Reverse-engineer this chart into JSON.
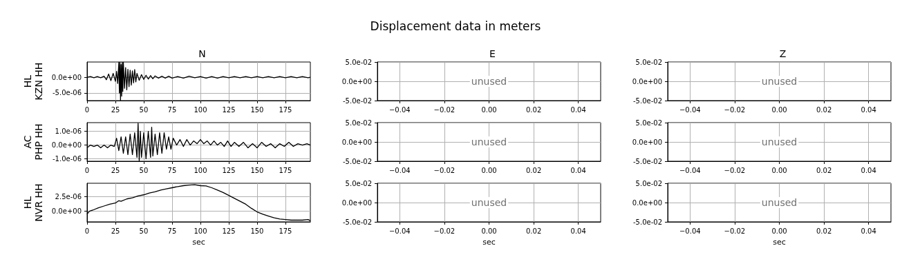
{
  "chart_data": [
    {
      "type": "line",
      "title": "N",
      "ylabel": "HL\nKZN HH",
      "annotations": [
        "Displacement data in meters"
      ],
      "grid": true,
      "xlim": [
        0,
        197
      ],
      "xticks": [
        0,
        25,
        50,
        75,
        100,
        125,
        150,
        175
      ],
      "ylim": [
        -7.4e-06,
        4.8e-06
      ],
      "yticks": [
        {
          "value": -5e-06,
          "label": "-5.0e-06"
        },
        {
          "value": 0,
          "label": "0.0e+00"
        }
      ],
      "series": [
        {
          "color": "#000000",
          "x": [
            0,
            3,
            6,
            9,
            12,
            15,
            17,
            19,
            21,
            23,
            25,
            26,
            27,
            28,
            28.5,
            29,
            29.5,
            30,
            30.5,
            31,
            31.5,
            32,
            33,
            34,
            35,
            36,
            37,
            38,
            39,
            40,
            41,
            42,
            43,
            44,
            46,
            48,
            50,
            52,
            54,
            56,
            58,
            60,
            63,
            66,
            69,
            72,
            75,
            80,
            85,
            90,
            95,
            100,
            105,
            110,
            115,
            120,
            125,
            130,
            135,
            140,
            145,
            150,
            155,
            160,
            165,
            170,
            175,
            180,
            185,
            190,
            195,
            197
          ],
          "values": [
            0,
            2e-07,
            -2e-07,
            2e-07,
            -2e-07,
            3e-07,
            -8e-07,
            1e-06,
            -1.1e-06,
            1.2e-06,
            -1.3e-06,
            1.8e-06,
            -2e-06,
            4.7e-06,
            -5e-06,
            4.7e-06,
            -7.3e-06,
            4e-06,
            -6e-06,
            4.7e-06,
            -4.5e-06,
            4.7e-06,
            -3.5e-06,
            3e-06,
            -4e-06,
            2.5e-06,
            -3e-06,
            2.2e-06,
            -2.5e-06,
            2e-06,
            -1.8e-06,
            2.4e-06,
            -1.5e-06,
            1.2e-06,
            -1e-06,
            8e-07,
            -7e-07,
            6e-07,
            -6e-07,
            5e-07,
            -5e-07,
            4e-07,
            -3e-07,
            3e-07,
            -3e-07,
            3e-07,
            -3e-07,
            2e-07,
            -3e-07,
            3e-07,
            -2e-07,
            2e-07,
            -3e-07,
            2e-07,
            -3e-07,
            2e-07,
            -2e-07,
            2e-07,
            -2e-07,
            2e-07,
            -2e-07,
            2e-07,
            -2e-07,
            2e-07,
            -2e-07,
            2e-07,
            -2e-07,
            2e-07,
            -2e-07,
            2e-07,
            -2e-07,
            0
          ]
        }
      ]
    },
    {
      "type": "line",
      "title": "E",
      "annotations": [
        "unused"
      ],
      "grid": true,
      "xlim": [
        -0.05,
        0.05
      ],
      "xticks": [
        {
          "value": -0.04,
          "label": "−0.04"
        },
        {
          "value": -0.02,
          "label": "−0.02"
        },
        {
          "value": 0,
          "label": "0.00"
        },
        {
          "value": 0.02,
          "label": "0.02"
        },
        {
          "value": 0.04,
          "label": "0.04"
        }
      ],
      "ylim": [
        -0.05,
        0.05
      ],
      "yticks": [
        {
          "value": -0.05,
          "label": "-5.0e-02"
        },
        {
          "value": 0,
          "label": "0.0e+00"
        },
        {
          "value": 0.05,
          "label": "5.0e-02"
        }
      ]
    },
    {
      "type": "line",
      "title": "Z",
      "annotations": [
        "unused"
      ],
      "grid": true,
      "xlim": [
        -0.05,
        0.05
      ],
      "xticks": [
        {
          "value": -0.04,
          "label": "−0.04"
        },
        {
          "value": -0.02,
          "label": "−0.02"
        },
        {
          "value": 0,
          "label": "0.00"
        },
        {
          "value": 0.02,
          "label": "0.02"
        },
        {
          "value": 0.04,
          "label": "0.04"
        }
      ],
      "ylim": [
        -0.05,
        0.05
      ],
      "yticks": [
        {
          "value": -0.05,
          "label": "-5.0e-02"
        },
        {
          "value": 0,
          "label": "0.0e+00"
        },
        {
          "value": 0.05,
          "label": "5.0e-02"
        }
      ]
    },
    {
      "type": "line",
      "ylabel": "AC\nPHP HH",
      "grid": true,
      "xlim": [
        0,
        197
      ],
      "xticks": [
        0,
        25,
        50,
        75,
        100,
        125,
        150,
        175
      ],
      "ylim": [
        -1.18e-06,
        1.64e-06
      ],
      "yticks": [
        {
          "value": -1e-06,
          "label": "-1.0e-06"
        },
        {
          "value": 0,
          "label": "0.0e+00"
        },
        {
          "value": 1e-06,
          "label": "1.0e-06"
        }
      ],
      "series": [
        {
          "color": "#000000",
          "x": [
            0,
            3,
            6,
            9,
            12,
            15,
            18,
            21,
            24,
            26,
            28,
            30,
            32,
            34,
            36,
            38,
            40,
            42,
            44,
            45,
            46,
            47,
            48,
            50,
            52,
            54,
            56,
            57,
            58,
            60,
            62,
            64,
            66,
            68,
            70,
            72,
            74,
            76,
            79,
            82,
            85,
            88,
            91,
            94,
            97,
            100,
            103,
            106,
            109,
            112,
            115,
            118,
            121,
            124,
            127,
            130,
            134,
            138,
            142,
            146,
            150,
            154,
            158,
            162,
            166,
            170,
            174,
            178,
            182,
            186,
            190,
            194,
            197
          ],
          "values": [
            -2e-07,
            0.0,
            -1e-07,
            0.0,
            -2e-07,
            0.0,
            -2e-07,
            0.0,
            -1e-07,
            5e-07,
            -4e-07,
            6e-07,
            -6e-07,
            6e-07,
            -7e-07,
            8e-07,
            -7e-07,
            9e-07,
            -9e-07,
            1.6e-06,
            -1.15e-06,
            1e-06,
            -9e-07,
            9e-07,
            -1e-06,
            1e-06,
            -9e-07,
            1.3e-06,
            -8e-07,
            8e-07,
            -7e-07,
            9e-07,
            -6e-07,
            9e-07,
            -3e-07,
            6e-07,
            -3e-07,
            5e-07,
            0.0,
            4e-07,
            -1e-07,
            4e-07,
            0.0,
            3e-07,
            1e-07,
            4e-07,
            1e-07,
            3e-07,
            0.0,
            3e-07,
            0.0,
            2e-07,
            -1e-07,
            3e-07,
            -1e-07,
            2e-07,
            -1e-07,
            2e-07,
            -2e-07,
            1e-07,
            -2e-07,
            2e-07,
            -1e-07,
            1e-07,
            -2e-07,
            1e-07,
            -1e-07,
            2e-07,
            -1e-07,
            1e-07,
            0.0,
            1e-07,
            0.0
          ]
        }
      ]
    },
    {
      "type": "line",
      "annotations": [
        "unused"
      ],
      "grid": true,
      "xlim": [
        -0.05,
        0.05
      ],
      "xticks": [
        {
          "value": -0.04,
          "label": "−0.04"
        },
        {
          "value": -0.02,
          "label": "−0.02"
        },
        {
          "value": 0,
          "label": "0.00"
        },
        {
          "value": 0.02,
          "label": "0.02"
        },
        {
          "value": 0.04,
          "label": "0.04"
        }
      ],
      "ylim": [
        -0.05,
        0.05
      ],
      "yticks": [
        {
          "value": -0.05,
          "label": "-5.0e-02"
        },
        {
          "value": 0,
          "label": "0.0e+00"
        },
        {
          "value": 0.05,
          "label": "5.0e-02"
        }
      ]
    },
    {
      "type": "line",
      "annotations": [
        "unused"
      ],
      "grid": true,
      "xlim": [
        -0.05,
        0.05
      ],
      "xticks": [
        {
          "value": -0.04,
          "label": "−0.04"
        },
        {
          "value": -0.02,
          "label": "−0.02"
        },
        {
          "value": 0,
          "label": "0.00"
        },
        {
          "value": 0.02,
          "label": "0.02"
        },
        {
          "value": 0.04,
          "label": "0.04"
        }
      ],
      "ylim": [
        -0.05,
        0.05
      ],
      "yticks": [
        {
          "value": -0.05,
          "label": "-5.0e-02"
        },
        {
          "value": 0,
          "label": "0.0e+00"
        },
        {
          "value": 0.05,
          "label": "5.0e-02"
        }
      ]
    },
    {
      "type": "line",
      "ylabel": "HL\nNVR HH",
      "xlabel": "sec",
      "grid": true,
      "xlim": [
        0,
        197
      ],
      "xticks": [
        0,
        25,
        50,
        75,
        100,
        125,
        150,
        175
      ],
      "ylim": [
        -1.79e-06,
        4.76e-06
      ],
      "yticks": [
        {
          "value": 0,
          "label": "0.0e+00"
        },
        {
          "value": 2.5e-06,
          "label": "2.5e-06"
        }
      ],
      "series": [
        {
          "color": "#000000",
          "x": [
            0,
            2,
            5,
            10,
            15,
            20,
            25,
            28,
            30,
            35,
            40,
            45,
            50,
            55,
            60,
            65,
            70,
            75,
            80,
            85,
            90,
            95,
            100,
            105,
            110,
            115,
            120,
            125,
            130,
            135,
            140,
            145,
            150,
            155,
            160,
            165,
            170,
            175,
            180,
            185,
            190,
            195,
            197
          ],
          "values": [
            -5e-07,
            0.0,
            2e-07,
            6e-07,
            9e-07,
            1.2e-06,
            1.4e-06,
            1.8e-06,
            1.7e-06,
            2.1e-06,
            2.3e-06,
            2.6e-06,
            2.8e-06,
            3.1e-06,
            3.3e-06,
            3.6e-06,
            3.8e-06,
            4e-06,
            4.2e-06,
            4.35e-06,
            4.45e-06,
            4.5e-06,
            4.35e-06,
            4.3e-06,
            4e-06,
            3.6e-06,
            3.2e-06,
            2.7e-06,
            2.2e-06,
            1.7e-06,
            1.2e-06,
            5e-07,
            -1e-07,
            -5e-07,
            -8e-07,
            -1.1e-06,
            -1.3e-06,
            -1.4e-06,
            -1.5e-06,
            -1.5e-06,
            -1.5e-06,
            -1.4e-06,
            -1.6e-06
          ]
        }
      ]
    },
    {
      "type": "line",
      "xlabel": "sec",
      "annotations": [
        "unused"
      ],
      "grid": true,
      "xlim": [
        -0.05,
        0.05
      ],
      "xticks": [
        {
          "value": -0.04,
          "label": "−0.04"
        },
        {
          "value": -0.02,
          "label": "−0.02"
        },
        {
          "value": 0,
          "label": "0.00"
        },
        {
          "value": 0.02,
          "label": "0.02"
        },
        {
          "value": 0.04,
          "label": "0.04"
        }
      ],
      "ylim": [
        -0.05,
        0.05
      ],
      "yticks": [
        {
          "value": -0.05,
          "label": "-5.0e-02"
        },
        {
          "value": 0,
          "label": "0.0e+00"
        },
        {
          "value": 0.05,
          "label": "5.0e-02"
        }
      ]
    },
    {
      "type": "line",
      "xlabel": "sec",
      "annotations": [
        "unused"
      ],
      "grid": true,
      "xlim": [
        -0.05,
        0.05
      ],
      "xticks": [
        {
          "value": -0.04,
          "label": "−0.04"
        },
        {
          "value": -0.02,
          "label": "−0.02"
        },
        {
          "value": 0,
          "label": "0.00"
        },
        {
          "value": 0.02,
          "label": "0.02"
        },
        {
          "value": 0.04,
          "label": "0.04"
        }
      ],
      "ylim": [
        -0.05,
        0.05
      ],
      "yticks": [
        {
          "value": -0.05,
          "label": "-5.0e-02"
        },
        {
          "value": 0,
          "label": "0.0e+00"
        },
        {
          "value": 0.05,
          "label": "5.0e-02"
        }
      ]
    }
  ]
}
